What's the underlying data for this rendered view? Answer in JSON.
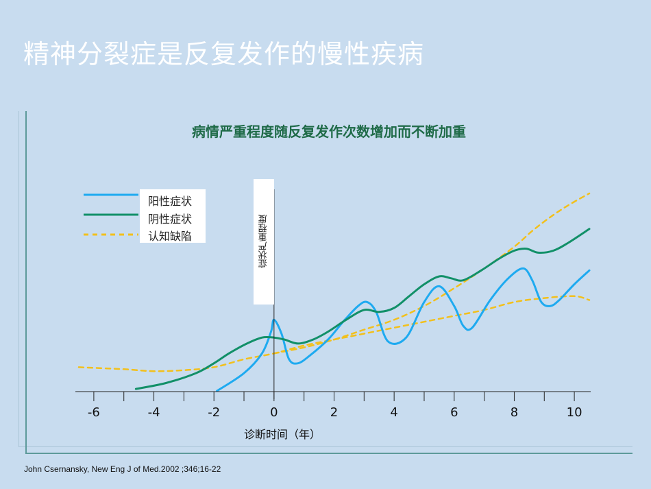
{
  "slide": {
    "title": "精神分裂症是反复发作的慢性疾病",
    "citation": "John Csernansky, New Eng J of Med.2002 ;346;16-22"
  },
  "chart_data": {
    "type": "line",
    "title": "病情严重程度随反复发作次数增加而不断加重",
    "xlabel": "诊断时间（年）",
    "ylabel": "症状严重程度",
    "x_ticks": [
      -6,
      -4,
      -2,
      0,
      2,
      4,
      6,
      8,
      10
    ],
    "xlim": [
      -6.5,
      10.5
    ],
    "ylim": [
      0,
      10
    ],
    "legend_position": "top-left",
    "grid": false,
    "series": [
      {
        "name": "阳性症状",
        "color": "#1eaaf0",
        "style": "solid",
        "x": [
          -1.9,
          -1.0,
          -0.4,
          -0.1,
          0.0,
          0.25,
          0.5,
          0.8,
          1.2,
          1.8,
          2.3,
          2.8,
          3.1,
          3.4,
          3.8,
          4.4,
          5.0,
          5.5,
          6.0,
          6.3,
          6.6,
          7.2,
          7.8,
          8.3,
          8.6,
          8.9,
          9.2,
          9.5,
          10.0,
          10.5
        ],
        "y": [
          0.0,
          0.9,
          1.9,
          3.0,
          3.6,
          2.9,
          1.6,
          1.4,
          1.8,
          2.6,
          3.5,
          4.3,
          4.5,
          4.0,
          2.5,
          2.7,
          4.5,
          5.3,
          4.3,
          3.3,
          3.2,
          4.6,
          5.7,
          6.2,
          5.6,
          4.5,
          4.3,
          4.6,
          5.4,
          6.1
        ]
      },
      {
        "name": "阴性症状",
        "color": "#129068",
        "style": "solid",
        "x": [
          -4.6,
          -3.6,
          -2.6,
          -2.0,
          -1.5,
          -0.9,
          -0.4,
          0.0,
          0.35,
          0.8,
          1.3,
          1.8,
          2.4,
          3.0,
          3.5,
          4.0,
          4.5,
          5.0,
          5.5,
          5.9,
          6.3,
          6.9,
          7.5,
          8.0,
          8.4,
          8.8,
          9.3,
          9.8,
          10.5
        ],
        "y": [
          0.1,
          0.4,
          0.9,
          1.4,
          1.9,
          2.4,
          2.7,
          2.7,
          2.6,
          2.4,
          2.6,
          3.0,
          3.6,
          4.1,
          4.0,
          4.2,
          4.8,
          5.4,
          5.8,
          5.7,
          5.6,
          6.1,
          6.7,
          7.1,
          7.2,
          7.0,
          7.1,
          7.5,
          8.2
        ]
      },
      {
        "name": "认知缺陷",
        "color": "#f2c01c",
        "style": "dashed",
        "x": [
          -6.5,
          -5.0,
          -4.0,
          -3.0,
          -2.0,
          -1.0,
          0.0,
          1.0,
          2.0,
          3.0,
          4.0,
          5.0,
          6.0,
          7.0,
          8.0,
          9.0,
          10.0,
          10.5
        ],
        "y": [
          1.2,
          1.1,
          1.0,
          1.05,
          1.2,
          1.6,
          1.9,
          2.3,
          2.6,
          2.9,
          3.2,
          3.5,
          3.8,
          4.1,
          4.5,
          4.7,
          4.8,
          4.6
        ]
      },
      {
        "name": "",
        "color": "#f2c01c",
        "style": "dashed",
        "x": [
          0.0,
          1.0,
          2.0,
          3.0,
          4.0,
          5.0,
          6.0,
          7.0,
          8.0,
          8.6,
          9.2,
          9.8,
          10.5
        ],
        "y": [
          1.9,
          2.2,
          2.6,
          3.1,
          3.6,
          4.3,
          5.2,
          6.2,
          7.3,
          8.1,
          8.8,
          9.4,
          10.0
        ]
      }
    ]
  },
  "legend": [
    {
      "label": "阳性症状",
      "color": "#1eaaf0",
      "style": "solid"
    },
    {
      "label": "阴性症状",
      "color": "#129068",
      "style": "solid"
    },
    {
      "label": "认知缺陷",
      "color": "#f2c01c",
      "style": "dashed"
    }
  ]
}
